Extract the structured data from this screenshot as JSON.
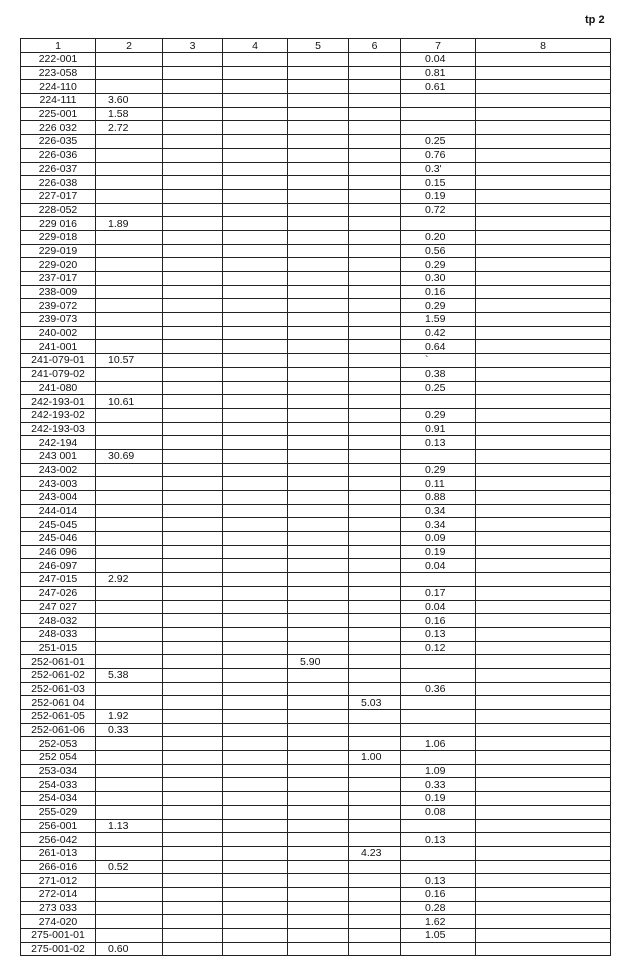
{
  "page_label": "tp 2",
  "columns": [
    "1",
    "2",
    "3",
    "4",
    "5",
    "6",
    "7",
    "8"
  ],
  "rows": [
    [
      "222-001",
      "",
      "",
      "",
      "",
      "",
      "0.04",
      ""
    ],
    [
      "223-058",
      "",
      "",
      "",
      "",
      "",
      "0.81",
      ""
    ],
    [
      "224-110",
      "",
      "",
      "",
      "",
      "",
      "0.61",
      ""
    ],
    [
      "224-111",
      "3.60",
      "",
      "",
      "",
      "",
      "",
      ""
    ],
    [
      "225-001",
      "1.58",
      "",
      "",
      "",
      "",
      "",
      ""
    ],
    [
      "226 032",
      "2.72",
      "",
      "",
      "",
      "",
      "",
      ""
    ],
    [
      "226-035",
      "",
      "",
      "",
      "",
      "",
      "0.25",
      ""
    ],
    [
      "226-036",
      "",
      "",
      "",
      "",
      "",
      "0.76",
      ""
    ],
    [
      "226-037",
      "",
      "",
      "",
      "",
      "",
      "0.3'",
      ""
    ],
    [
      "226-038",
      "",
      "",
      "",
      "",
      "",
      "0.15",
      ""
    ],
    [
      "227-017",
      "",
      "",
      "",
      "",
      "",
      "0.19",
      ""
    ],
    [
      "228-052",
      "",
      "",
      "",
      "",
      "",
      "0.72",
      ""
    ],
    [
      "229 016",
      "1.89",
      "",
      "",
      "",
      "",
      "",
      ""
    ],
    [
      "229-018",
      "",
      "",
      "",
      "",
      "",
      "0.20",
      ""
    ],
    [
      "229-019",
      "",
      "",
      "",
      "",
      "",
      "0.56",
      ""
    ],
    [
      "229-020",
      "",
      "",
      "",
      "",
      "",
      "0.29",
      ""
    ],
    [
      "237-017",
      "",
      "",
      "",
      "",
      "",
      "0.30",
      ""
    ],
    [
      "238-009",
      "",
      "",
      "",
      "",
      "",
      "0.16",
      ""
    ],
    [
      "239-072",
      "",
      "",
      "",
      "",
      "",
      "0.29",
      ""
    ],
    [
      "239-073",
      "",
      "",
      "",
      "",
      "",
      "1.59",
      ""
    ],
    [
      "240-002",
      "",
      "",
      "",
      "",
      "",
      "0.42",
      ""
    ],
    [
      "241-001",
      "",
      "",
      "",
      "",
      "",
      "0.64",
      ""
    ],
    [
      "241-079-01",
      "10.57",
      "",
      "",
      "",
      "",
      "`",
      ""
    ],
    [
      "241-079-02",
      "",
      "",
      "",
      "",
      "",
      "0.38",
      ""
    ],
    [
      "241-080",
      "",
      "",
      "",
      "",
      "",
      "0.25",
      ""
    ],
    [
      "242-193-01",
      "10.61",
      "",
      "",
      "",
      "",
      "",
      ""
    ],
    [
      "242-193-02",
      "",
      "",
      "",
      "",
      "",
      "0.29",
      ""
    ],
    [
      "242-193-03",
      "",
      "",
      "",
      "",
      "",
      "0.91",
      ""
    ],
    [
      "242-194",
      "",
      "",
      "",
      "",
      "",
      "0.13",
      ""
    ],
    [
      "243 001",
      "30.69",
      "",
      "",
      "",
      "",
      "",
      ""
    ],
    [
      "243-002",
      "",
      "",
      "",
      "",
      "",
      "0.29",
      ""
    ],
    [
      "243-003",
      "",
      "",
      "",
      "",
      "",
      "0.11",
      ""
    ],
    [
      "243-004",
      "",
      "",
      "",
      "",
      "",
      "0.88",
      ""
    ],
    [
      "244-014",
      "",
      "",
      "",
      "",
      "",
      "0.34",
      ""
    ],
    [
      "245-045",
      "",
      "",
      "",
      "",
      "",
      "0.34",
      ""
    ],
    [
      "245-046",
      "",
      "",
      "",
      "",
      "",
      "0.09",
      ""
    ],
    [
      "246 096",
      "",
      "",
      "",
      "",
      "",
      "0.19",
      ""
    ],
    [
      "246-097",
      "",
      "",
      "",
      "",
      "",
      "0.04",
      ""
    ],
    [
      "247-015",
      "2.92",
      "",
      "",
      "",
      "",
      "",
      ""
    ],
    [
      "247-026",
      "",
      "",
      "",
      "",
      "",
      "0.17",
      ""
    ],
    [
      "247 027",
      "",
      "",
      "",
      "",
      "",
      "0.04",
      ""
    ],
    [
      "248-032",
      "",
      "",
      "",
      "",
      "",
      "0.16",
      ""
    ],
    [
      "248-033",
      "",
      "",
      "",
      "",
      "",
      "0.13",
      ""
    ],
    [
      "251-015",
      "",
      "",
      "",
      "",
      "",
      "0.12",
      ""
    ],
    [
      "252-061-01",
      "",
      "",
      "",
      "5.90",
      "",
      "",
      ""
    ],
    [
      "252-061-02",
      "5.38",
      "",
      "",
      "",
      "",
      "",
      ""
    ],
    [
      "252-061-03",
      "",
      "",
      "",
      "",
      "",
      "0.36",
      ""
    ],
    [
      "252-061 04",
      "",
      "",
      "",
      "",
      "5.03",
      "",
      ""
    ],
    [
      "252-061-05",
      "1.92",
      "",
      "",
      "",
      "",
      "",
      ""
    ],
    [
      "252-061-06",
      "0.33",
      "",
      "",
      "",
      "",
      "",
      ""
    ],
    [
      "252-053",
      "",
      "",
      "",
      "",
      "",
      "1.06",
      ""
    ],
    [
      "252 054",
      "",
      "",
      "",
      "",
      "1.00",
      "",
      ""
    ],
    [
      "253-034",
      "",
      "",
      "",
      "",
      "",
      "1.09",
      ""
    ],
    [
      "254-033",
      "",
      "",
      "",
      "",
      "",
      "0.33",
      ""
    ],
    [
      "254-034",
      "",
      "",
      "",
      "",
      "",
      "0.19",
      ""
    ],
    [
      "255-029",
      "",
      "",
      "",
      "",
      "",
      "0.08",
      ""
    ],
    [
      "256-001",
      "1.13",
      "",
      "",
      "",
      "",
      "",
      ""
    ],
    [
      "256-042",
      "",
      "",
      "",
      "",
      "",
      "0.13",
      ""
    ],
    [
      "261-013",
      "",
      "",
      "",
      "",
      "4.23",
      "",
      ""
    ],
    [
      "266-016",
      "0.52",
      "",
      "",
      "",
      "",
      "",
      ""
    ],
    [
      "271-012",
      "",
      "",
      "",
      "",
      "",
      "0.13",
      ""
    ],
    [
      "272-014",
      "",
      "",
      "",
      "",
      "",
      "0.16",
      ""
    ],
    [
      "273 033",
      "",
      "",
      "",
      "",
      "",
      "0.28",
      ""
    ],
    [
      "274-020",
      "",
      "",
      "",
      "",
      "",
      "1.62",
      ""
    ],
    [
      "275-001-01",
      "",
      "",
      "",
      "",
      "",
      "1.05",
      ""
    ],
    [
      "275-001-02",
      "0.60",
      "",
      "",
      "",
      "",
      "",
      ""
    ]
  ]
}
